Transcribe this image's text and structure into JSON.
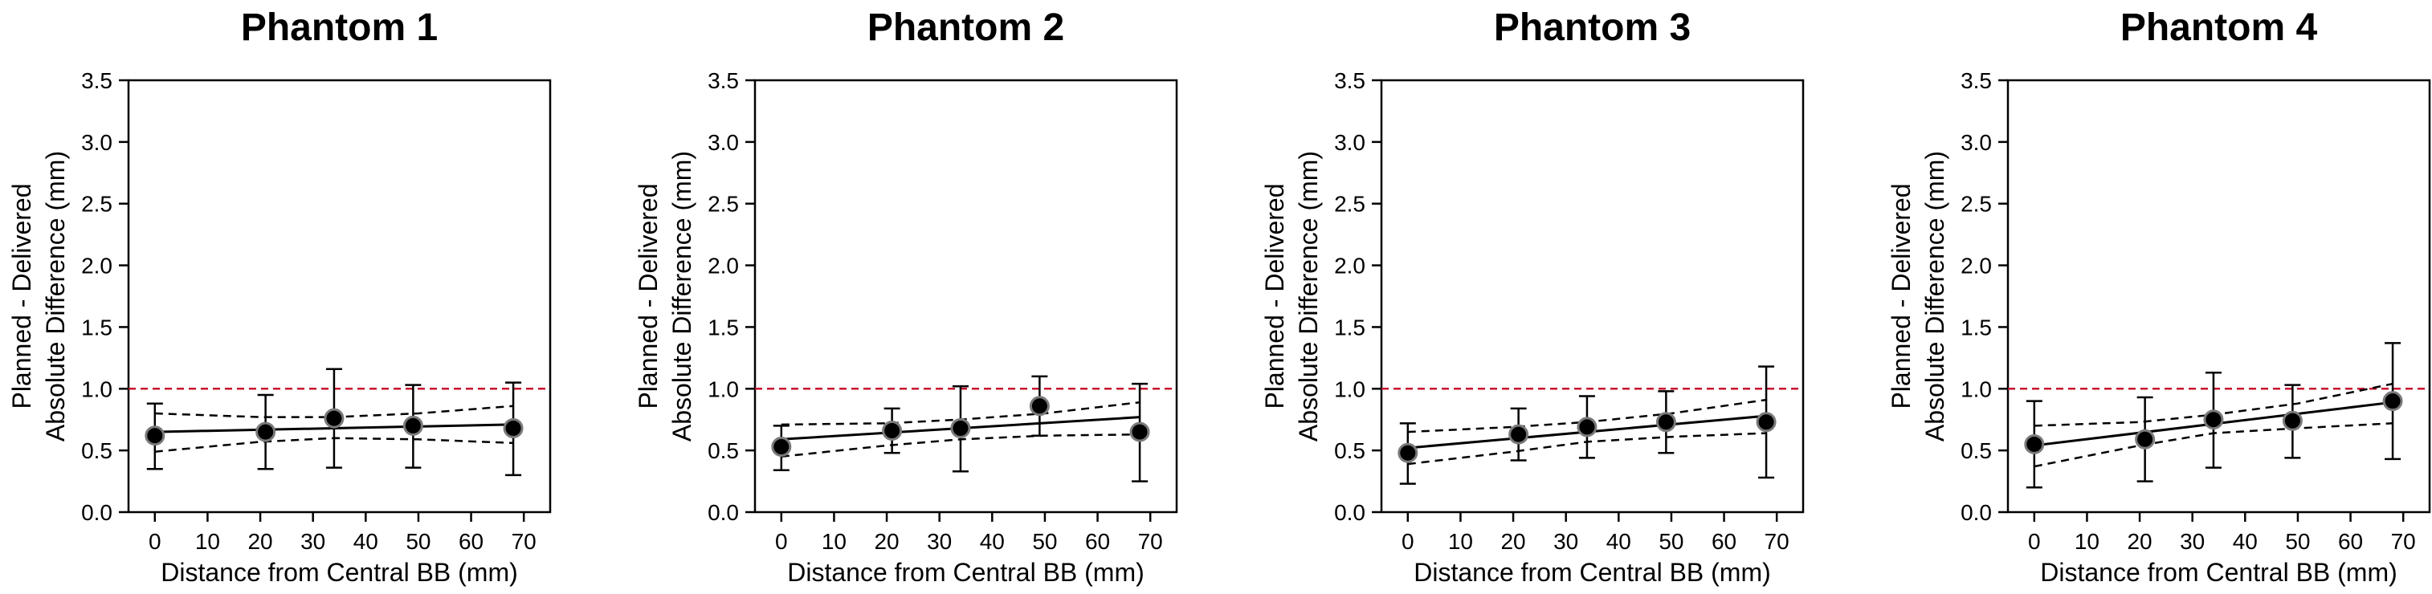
{
  "chart_data": [
    {
      "type": "scatter",
      "title": "Phantom 1",
      "xlabel": "Distance from Central BB (mm)",
      "ylabel": [
        "Planned - Delivered",
        "Absolute Difference (mm)"
      ],
      "xlim": [
        -5,
        75
      ],
      "ylim": [
        0,
        3.5
      ],
      "xticks": [
        0,
        10,
        20,
        30,
        40,
        50,
        60,
        70
      ],
      "yticks": [
        0.0,
        0.5,
        1.0,
        1.5,
        2.0,
        2.5,
        3.0,
        3.5
      ],
      "xtick_labels": [
        "0",
        "10",
        "20",
        "30",
        "40",
        "50",
        "60",
        "70"
      ],
      "ytick_labels": [
        "0.0",
        "0.5",
        "1.0",
        "1.5",
        "2.0",
        "2.5",
        "3.0",
        "3.5"
      ],
      "threshold": 1.0,
      "points": [
        {
          "x": 0,
          "y": 0.62,
          "lo": 0.35,
          "hi": 0.88
        },
        {
          "x": 21,
          "y": 0.65,
          "lo": 0.35,
          "hi": 0.95
        },
        {
          "x": 34,
          "y": 0.76,
          "lo": 0.36,
          "hi": 1.16
        },
        {
          "x": 49,
          "y": 0.7,
          "lo": 0.36,
          "hi": 1.03
        },
        {
          "x": 68,
          "y": 0.68,
          "lo": 0.3,
          "hi": 1.05
        }
      ],
      "fit": {
        "x": [
          0,
          68
        ],
        "y": [
          0.65,
          0.71
        ]
      },
      "ci_upper": [
        [
          0,
          0.8
        ],
        [
          20,
          0.77
        ],
        [
          34,
          0.77
        ],
        [
          50,
          0.8
        ],
        [
          68,
          0.86
        ]
      ],
      "ci_lower": [
        [
          0,
          0.49
        ],
        [
          20,
          0.57
        ],
        [
          34,
          0.6
        ],
        [
          50,
          0.59
        ],
        [
          68,
          0.56
        ]
      ]
    },
    {
      "type": "scatter",
      "title": "Phantom 2",
      "xlabel": "Distance from Central BB (mm)",
      "ylabel": [
        "Planned - Delivered",
        "Absolute Difference (mm)"
      ],
      "xlim": [
        -5,
        75
      ],
      "ylim": [
        0,
        3.5
      ],
      "xticks": [
        0,
        10,
        20,
        30,
        40,
        50,
        60,
        70
      ],
      "yticks": [
        0.0,
        0.5,
        1.0,
        1.5,
        2.0,
        2.5,
        3.0,
        3.5
      ],
      "xtick_labels": [
        "0",
        "10",
        "20",
        "30",
        "40",
        "50",
        "60",
        "70"
      ],
      "ytick_labels": [
        "0.0",
        "0.5",
        "1.0",
        "1.5",
        "2.0",
        "2.5",
        "3.0",
        "3.5"
      ],
      "threshold": 1.0,
      "points": [
        {
          "x": 0,
          "y": 0.53,
          "lo": 0.34,
          "hi": 0.7
        },
        {
          "x": 21,
          "y": 0.66,
          "lo": 0.48,
          "hi": 0.84
        },
        {
          "x": 34,
          "y": 0.68,
          "lo": 0.33,
          "hi": 1.02
        },
        {
          "x": 49,
          "y": 0.86,
          "lo": 0.62,
          "hi": 1.1
        },
        {
          "x": 68,
          "y": 0.65,
          "lo": 0.25,
          "hi": 1.04
        }
      ],
      "fit": {
        "x": [
          0,
          68
        ],
        "y": [
          0.59,
          0.77
        ]
      },
      "ci_upper": [
        [
          0,
          0.71
        ],
        [
          20,
          0.72
        ],
        [
          34,
          0.75
        ],
        [
          50,
          0.8
        ],
        [
          68,
          0.89
        ]
      ],
      "ci_lower": [
        [
          0,
          0.45
        ],
        [
          20,
          0.54
        ],
        [
          34,
          0.59
        ],
        [
          50,
          0.62
        ],
        [
          68,
          0.63
        ]
      ]
    },
    {
      "type": "scatter",
      "title": "Phantom 3",
      "xlabel": "Distance from Central BB (mm)",
      "ylabel": [
        "Planned - Delivered",
        "Absolute Difference (mm)"
      ],
      "xlim": [
        -5,
        75
      ],
      "ylim": [
        0,
        3.5
      ],
      "xticks": [
        0,
        10,
        20,
        30,
        40,
        50,
        60,
        70
      ],
      "yticks": [
        0.0,
        0.5,
        1.0,
        1.5,
        2.0,
        2.5,
        3.0,
        3.5
      ],
      "xtick_labels": [
        "0",
        "10",
        "20",
        "30",
        "40",
        "50",
        "60",
        "70"
      ],
      "ytick_labels": [
        "0.0",
        "0.5",
        "1.0",
        "1.5",
        "2.0",
        "2.5",
        "3.0",
        "3.5"
      ],
      "threshold": 1.0,
      "points": [
        {
          "x": 0,
          "y": 0.48,
          "lo": 0.23,
          "hi": 0.72
        },
        {
          "x": 21,
          "y": 0.63,
          "lo": 0.42,
          "hi": 0.84
        },
        {
          "x": 34,
          "y": 0.69,
          "lo": 0.44,
          "hi": 0.94
        },
        {
          "x": 49,
          "y": 0.73,
          "lo": 0.48,
          "hi": 0.98
        },
        {
          "x": 68,
          "y": 0.73,
          "lo": 0.28,
          "hi": 1.18
        }
      ],
      "fit": {
        "x": [
          0,
          68
        ],
        "y": [
          0.52,
          0.78
        ]
      },
      "ci_upper": [
        [
          0,
          0.65
        ],
        [
          20,
          0.69
        ],
        [
          34,
          0.73
        ],
        [
          50,
          0.8
        ],
        [
          68,
          0.91
        ]
      ],
      "ci_lower": [
        [
          0,
          0.39
        ],
        [
          20,
          0.49
        ],
        [
          34,
          0.57
        ],
        [
          50,
          0.61
        ],
        [
          68,
          0.64
        ]
      ]
    },
    {
      "type": "scatter",
      "title": "Phantom 4",
      "xlabel": "Distance from Central BB (mm)",
      "ylabel": [
        "Planned - Delivered",
        "Absolute Difference (mm)"
      ],
      "xlim": [
        -5,
        75
      ],
      "ylim": [
        0,
        3.5
      ],
      "xticks": [
        0,
        10,
        20,
        30,
        40,
        50,
        60,
        70
      ],
      "yticks": [
        0.0,
        0.5,
        1.0,
        1.5,
        2.0,
        2.5,
        3.0,
        3.5
      ],
      "xtick_labels": [
        "0",
        "10",
        "20",
        "30",
        "40",
        "50",
        "60",
        "70"
      ],
      "ytick_labels": [
        "0.0",
        "0.5",
        "1.0",
        "1.5",
        "2.0",
        "2.5",
        "3.0",
        "3.5"
      ],
      "threshold": 1.0,
      "points": [
        {
          "x": 0,
          "y": 0.55,
          "lo": 0.2,
          "hi": 0.9
        },
        {
          "x": 21,
          "y": 0.59,
          "lo": 0.25,
          "hi": 0.93
        },
        {
          "x": 34,
          "y": 0.75,
          "lo": 0.36,
          "hi": 1.13
        },
        {
          "x": 49,
          "y": 0.74,
          "lo": 0.44,
          "hi": 1.03
        },
        {
          "x": 68,
          "y": 0.9,
          "lo": 0.43,
          "hi": 1.37
        }
      ],
      "fit": {
        "x": [
          0,
          68
        ],
        "y": [
          0.54,
          0.89
        ]
      },
      "ci_upper": [
        [
          0,
          0.7
        ],
        [
          20,
          0.73
        ],
        [
          34,
          0.79
        ],
        [
          50,
          0.88
        ],
        [
          68,
          1.04
        ]
      ],
      "ci_lower": [
        [
          0,
          0.37
        ],
        [
          20,
          0.54
        ],
        [
          34,
          0.64
        ],
        [
          50,
          0.68
        ],
        [
          68,
          0.72
        ]
      ]
    }
  ],
  "colors": {
    "threshold": "#c8102e",
    "marker_fill": "#000000",
    "marker_edge": "#7a7a7a",
    "line": "#000000"
  }
}
